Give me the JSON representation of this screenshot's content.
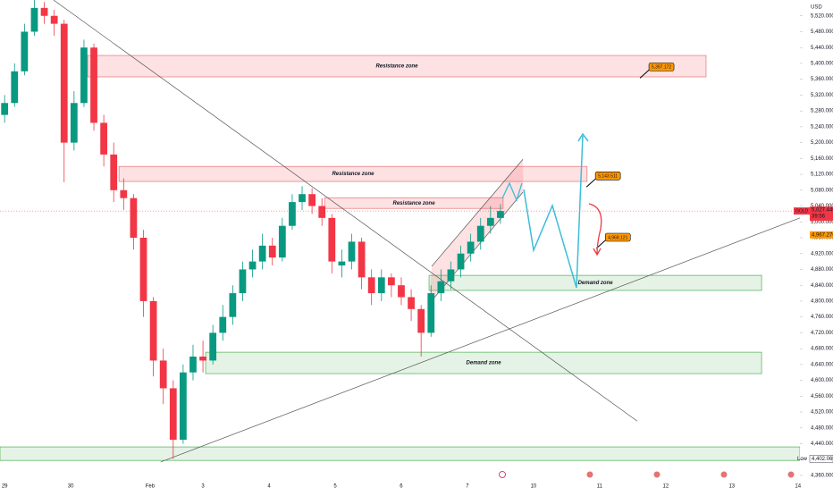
{
  "chart_data": {
    "type": "candlestick",
    "currency": "USD",
    "up_color": "#089981",
    "down_color": "#f23645",
    "x": [
      0,
      0.15,
      0.3,
      0.45,
      0.6,
      0.75,
      0.9,
      1.05,
      1.2,
      1.35,
      1.5,
      1.65,
      1.8,
      1.95,
      2.1,
      2.25,
      2.4,
      2.55,
      2.7,
      2.85,
      3,
      3.15,
      3.3,
      3.45,
      3.6,
      3.75,
      3.9,
      4.05,
      4.2,
      4.35,
      4.5,
      4.65,
      4.8,
      4.95,
      5.1,
      5.25,
      5.4,
      5.55,
      5.7,
      5.85,
      6,
      6.15,
      6.3,
      6.45,
      6.6,
      6.75,
      6.9,
      7.05,
      7.2,
      7.35,
      7.5
    ],
    "open": [
      5270,
      5300,
      5380,
      5480,
      5540,
      5520,
      5500,
      5200,
      5300,
      5440,
      5250,
      5170,
      5080,
      5060,
      4960,
      4800,
      4650,
      4580,
      4450,
      4620,
      4660,
      4650,
      4720,
      4760,
      4820,
      4880,
      4900,
      4940,
      4910,
      4990,
      5050,
      5070,
      5040,
      5010,
      4890,
      4900,
      4950,
      4860,
      4820,
      4860,
      4840,
      4810,
      4780,
      4720,
      4820,
      4850,
      4880,
      4920,
      4950,
      4990,
      5010
    ],
    "high": [
      5320,
      5400,
      5500,
      5560,
      5555,
      5535,
      5510,
      5330,
      5460,
      5450,
      5270,
      5200,
      5110,
      5070,
      4980,
      4810,
      4680,
      4600,
      4640,
      4690,
      4700,
      4740,
      4790,
      4840,
      4900,
      4930,
      4970,
      4960,
      5010,
      5070,
      5090,
      5085,
      5060,
      5020,
      4930,
      4970,
      4960,
      4880,
      4880,
      4870,
      4860,
      4830,
      4790,
      4840,
      4880,
      4900,
      4940,
      4970,
      5010,
      5040,
      5045
    ],
    "low": [
      5250,
      5290,
      5370,
      5470,
      5500,
      5470,
      5100,
      5180,
      5290,
      5230,
      5140,
      5050,
      5030,
      4930,
      4760,
      4610,
      4540,
      4402.06,
      4440,
      4600,
      4620,
      4640,
      4700,
      4740,
      4800,
      4860,
      4880,
      4890,
      4900,
      4980,
      5030,
      5020,
      4990,
      4870,
      4860,
      4880,
      4830,
      4790,
      4800,
      4810,
      4790,
      4750,
      4660,
      4710,
      4800,
      4830,
      4860,
      4900,
      4930,
      4970,
      4995
    ],
    "close": [
      5300,
      5380,
      5480,
      5540,
      5520,
      5500,
      5200,
      5300,
      5440,
      5250,
      5170,
      5080,
      5060,
      4960,
      4800,
      4650,
      4580,
      4450,
      4620,
      4660,
      4650,
      4720,
      4760,
      4820,
      4880,
      4900,
      4940,
      4910,
      4990,
      5050,
      5070,
      5040,
      5010,
      4900,
      4900,
      4950,
      4860,
      4820,
      4860,
      4840,
      4810,
      4780,
      4720,
      4820,
      4850,
      4880,
      4920,
      4950,
      4990,
      5010,
      5027.44
    ],
    "xlim": [
      -0.07,
      12.03
    ],
    "ylim": [
      4360,
      5560
    ],
    "xticks": [
      {
        "value": 0,
        "label": "29"
      },
      {
        "value": 1,
        "label": "30"
      },
      {
        "value": 2.2,
        "label": "Feb"
      },
      3,
      4,
      5,
      6,
      7,
      {
        "value": 8,
        "label": "10"
      },
      {
        "value": 9,
        "label": "11"
      },
      {
        "value": 10,
        "label": "12"
      },
      {
        "value": 11,
        "label": "13"
      },
      {
        "value": 12,
        "label": "14"
      }
    ],
    "yticks": [
      {
        "value": 4360,
        "label": "4,360.000"
      },
      {
        "value": 4400,
        "label": "4,400.000"
      },
      {
        "value": 4440,
        "label": "4,440.000"
      },
      {
        "value": 4480,
        "label": "4,480.000"
      },
      {
        "value": 4520,
        "label": "4,520.000"
      },
      {
        "value": 4560,
        "label": "4,560.000"
      },
      {
        "value": 4600,
        "label": "4,600.000"
      },
      {
        "value": 4640,
        "label": "4,640.000"
      },
      {
        "value": 4680,
        "label": "4,680.000"
      },
      {
        "value": 4720,
        "label": "4,720.000"
      },
      {
        "value": 4760,
        "label": "4,760.000"
      },
      {
        "value": 4800,
        "label": "4,800.000"
      },
      {
        "value": 4840,
        "label": "4,840.000"
      },
      {
        "value": 4880,
        "label": "4,880.000"
      },
      {
        "value": 4920,
        "label": "4,920.000"
      },
      {
        "value": 4960,
        "label": "4,960.000"
      },
      {
        "value": 5000,
        "label": "5,000.000"
      },
      {
        "value": 5040,
        "label": "5,040.000"
      },
      {
        "value": 5080,
        "label": "5,080.000"
      },
      {
        "value": 5120,
        "label": "5,120.000"
      },
      {
        "value": 5160,
        "label": "5,160.000"
      },
      {
        "value": 5200,
        "label": "5,200.000"
      },
      {
        "value": 5240,
        "label": "5,240.000"
      },
      {
        "value": 5280,
        "label": "5,280.000"
      },
      {
        "value": 5320,
        "label": "5,320.000"
      },
      {
        "value": 5360,
        "label": "5,360.000"
      },
      {
        "value": 5400,
        "label": "5,400.000"
      },
      {
        "value": 5440,
        "label": "5,440.000"
      },
      {
        "value": 5480,
        "label": "5,480.000"
      },
      {
        "value": 5520,
        "label": "5,520.000"
      }
    ],
    "zones": [
      {
        "label": "Resistance  zone",
        "kind": "resistance",
        "x": [
          1.255,
          10.61
        ],
        "y": [
          5366,
          5420
        ]
      },
      {
        "label": "Resistance  zone",
        "kind": "resistance",
        "x": [
          1.73,
          8.81
        ],
        "y": [
          5102,
          5140
        ]
      },
      {
        "label": "Resistance  zone",
        "kind": "resistance",
        "x": [
          4.84,
          7.54
        ],
        "y": [
          5034,
          5061
        ]
      },
      {
        "label": "Demand zone",
        "kind": "demand",
        "x": [
          6.42,
          11.45
        ],
        "y": [
          4827,
          4865
        ]
      },
      {
        "label": "Demand zone",
        "kind": "demand",
        "x": [
          3.04,
          11.45
        ],
        "y": [
          4617,
          4671
        ]
      },
      {
        "kind": "demand",
        "x": [
          -0.07,
          12.03
        ],
        "y": [
          4398,
          4432
        ]
      }
    ],
    "trendlines": [
      {
        "x": [
          0.74,
          9.57
        ],
        "y": [
          5560,
          4497
        ]
      },
      {
        "x": [
          2.36,
          12.03
        ],
        "y": [
          4394,
          5010
        ]
      }
    ],
    "channel": {
      "lower": {
        "x": [
          6.42,
          7.84
        ],
        "y": [
          4793,
          5075
        ]
      },
      "upper": {
        "x": [
          6.46,
          7.84
        ],
        "y": [
          4888,
          5158
        ]
      }
    },
    "callouts": [
      {
        "x": 9.8,
        "value": 5390,
        "label": "5,397.172"
      },
      {
        "x": 8.99,
        "value": 5115,
        "label": "5,143.511"
      },
      {
        "x": 9.14,
        "value": 4960,
        "label": "4,968.121"
      }
    ],
    "last_price": {
      "symbol": "GOLD",
      "value": 5027.44,
      "label": "5,027.440",
      "countdown": "39:56"
    },
    "marked_price": {
      "value": 4967.27,
      "label": "4,967.270"
    },
    "low_price": {
      "name": "Low",
      "value": 4402.06,
      "label": "4,402.060"
    }
  }
}
